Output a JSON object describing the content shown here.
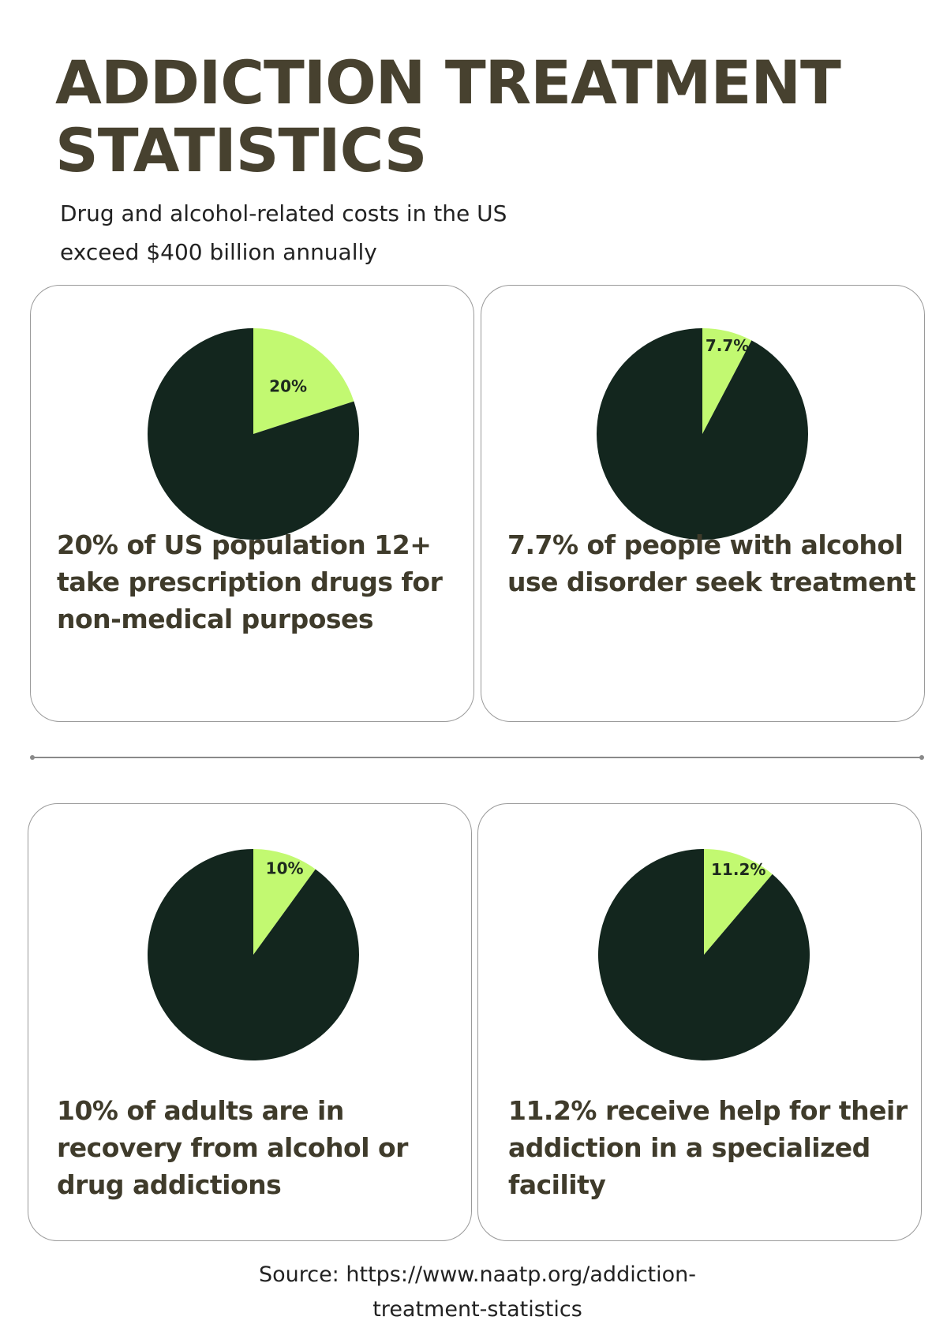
{
  "header": {
    "title_line1": "ADDICTION TREATMENT",
    "title_line2": "STATISTICS",
    "subtitle_line1": "Drug and alcohol-related costs in the US",
    "subtitle_line2": "exceed $400 billion annually"
  },
  "colors": {
    "highlight": "#c2f971",
    "remainder": "#13261e",
    "text": "#47412f"
  },
  "chart_data": [
    {
      "type": "pie",
      "values": [
        20,
        80
      ],
      "slice_labels": [
        "20%",
        ""
      ],
      "description_lines": [
        "20% of US population 12+",
        "take prescription drugs for",
        "non-medical purposes"
      ]
    },
    {
      "type": "pie",
      "values": [
        7.7,
        92.3
      ],
      "slice_labels": [
        "7.7%",
        ""
      ],
      "description_lines": [
        "7.7% of people with alcohol",
        "use disorder seek treatment"
      ]
    },
    {
      "type": "pie",
      "values": [
        10,
        90
      ],
      "slice_labels": [
        "10%",
        ""
      ],
      "description_lines": [
        "10% of adults are in",
        "recovery from alcohol or",
        "drug addictions"
      ]
    },
    {
      "type": "pie",
      "values": [
        11.2,
        88.8
      ],
      "slice_labels": [
        "11.2%",
        ""
      ],
      "description_lines": [
        "11.2% receive help for their",
        "addiction in a specialized",
        "facility"
      ]
    }
  ],
  "footer": {
    "source_line1": "Source: https://www.naatp.org/addiction-",
    "source_line2": "treatment-statistics"
  }
}
